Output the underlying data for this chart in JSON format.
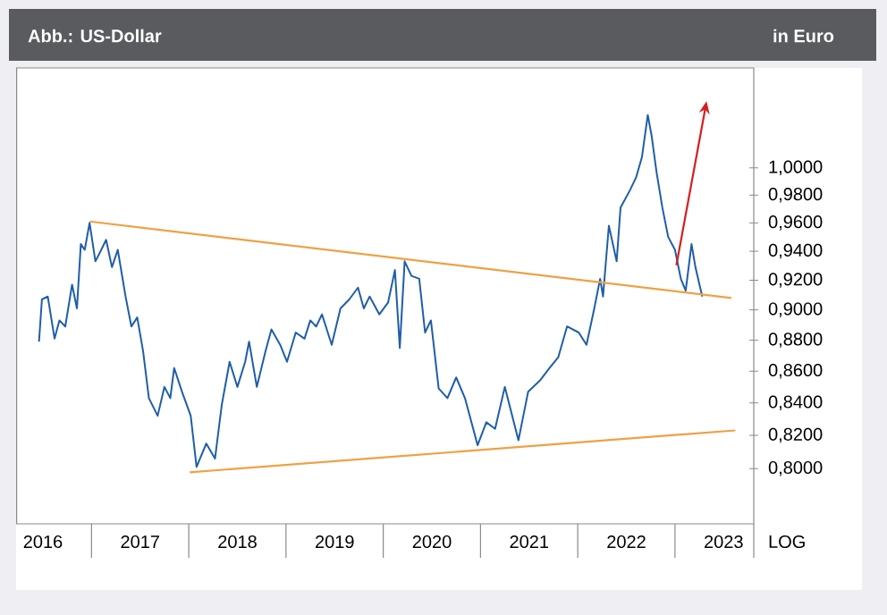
{
  "chart_data": {
    "type": "line",
    "title": "Abb.: US-Dollar",
    "ylabel": "in Euro",
    "log": "y",
    "marker": "none",
    "line_style": "solid",
    "xlim": [
      2016.23,
      2023.81
    ],
    "ylim": [
      0.768,
      1.077
    ],
    "xticks": [
      {
        "value": 2016.5,
        "label": "2016"
      },
      {
        "value": 2017.5,
        "label": "2017"
      },
      {
        "value": 2018.5,
        "label": "2018"
      },
      {
        "value": 2019.5,
        "label": "2019"
      },
      {
        "value": 2020.5,
        "label": "2020"
      },
      {
        "value": 2021.5,
        "label": "2021"
      },
      {
        "value": 2022.5,
        "label": "2022"
      },
      {
        "value": 2023.5,
        "label": "2023"
      }
    ],
    "yticks": [
      {
        "value": 0.8,
        "label": "0,8000"
      },
      {
        "value": 0.82,
        "label": "0,8200"
      },
      {
        "value": 0.84,
        "label": "0,8400"
      },
      {
        "value": 0.86,
        "label": "0,8600"
      },
      {
        "value": 0.88,
        "label": "0,8800"
      },
      {
        "value": 0.9,
        "label": "0,9000"
      },
      {
        "value": 0.92,
        "label": "0,9200"
      },
      {
        "value": 0.94,
        "label": "0,9400"
      },
      {
        "value": 0.96,
        "label": "0,9600"
      },
      {
        "value": 0.98,
        "label": "0,9800"
      },
      {
        "value": 1.0,
        "label": "1,0000"
      }
    ],
    "annotations": [
      "LOG"
    ],
    "series": [
      {
        "color": "#1f5ea8",
        "x": [
          2016.46,
          2016.49,
          2016.55,
          2016.62,
          2016.67,
          2016.73,
          2016.8,
          2016.85,
          2016.89,
          2016.93,
          2016.98,
          2017.04,
          2017.1,
          2017.15,
          2017.21,
          2017.27,
          2017.35,
          2017.41,
          2017.47,
          2017.53,
          2017.59,
          2017.68,
          2017.75,
          2017.81,
          2017.85,
          2017.93,
          2018.02,
          2018.08,
          2018.18,
          2018.27,
          2018.34,
          2018.42,
          2018.5,
          2018.58,
          2018.62,
          2018.7,
          2018.79,
          2018.85,
          2018.94,
          2019.01,
          2019.1,
          2019.19,
          2019.25,
          2019.31,
          2019.37,
          2019.47,
          2019.56,
          2019.65,
          2019.74,
          2019.8,
          2019.86,
          2019.96,
          2020.05,
          2020.12,
          2020.17,
          2020.22,
          2020.29,
          2020.37,
          2020.43,
          2020.49,
          2020.57,
          2020.66,
          2020.75,
          2020.84,
          2020.97,
          2021.06,
          2021.15,
          2021.25,
          2021.39,
          2021.49,
          2021.61,
          2021.71,
          2021.8,
          2021.89,
          2022.01,
          2022.09,
          2022.17,
          2022.23,
          2022.26,
          2022.32,
          2022.4,
          2022.44,
          2022.54,
          2022.6,
          2022.66,
          2022.72,
          2022.76,
          2022.81,
          2022.87,
          2022.93,
          2023.0,
          2023.06,
          2023.11,
          2023.17,
          2023.21,
          2023.28
        ],
        "values": [
          0.879,
          0.907,
          0.909,
          0.881,
          0.893,
          0.889,
          0.917,
          0.901,
          0.945,
          0.941,
          0.96,
          0.933,
          0.941,
          0.948,
          0.929,
          0.941,
          0.909,
          0.889,
          0.895,
          0.873,
          0.843,
          0.832,
          0.85,
          0.843,
          0.862,
          0.847,
          0.832,
          0.801,
          0.815,
          0.806,
          0.839,
          0.866,
          0.85,
          0.866,
          0.879,
          0.85,
          0.873,
          0.887,
          0.877,
          0.866,
          0.885,
          0.881,
          0.893,
          0.889,
          0.897,
          0.877,
          0.901,
          0.907,
          0.915,
          0.901,
          0.909,
          0.897,
          0.905,
          0.927,
          0.875,
          0.933,
          0.923,
          0.921,
          0.885,
          0.893,
          0.849,
          0.843,
          0.856,
          0.843,
          0.814,
          0.828,
          0.824,
          0.85,
          0.817,
          0.847,
          0.854,
          0.862,
          0.869,
          0.889,
          0.885,
          0.877,
          0.901,
          0.921,
          0.909,
          0.958,
          0.933,
          0.971,
          0.984,
          0.993,
          1.008,
          1.04,
          1.024,
          0.997,
          0.971,
          0.95,
          0.941,
          0.921,
          0.913,
          0.945,
          0.929,
          0.909
        ]
      },
      {
        "color": "#f0a044",
        "x": [
          2016.98,
          2023.58
        ],
        "values": [
          0.961,
          0.908
        ]
      },
      {
        "color": "#f0a044",
        "x": [
          2018.01,
          2023.62
        ],
        "values": [
          0.798,
          0.823
        ]
      }
    ]
  }
}
